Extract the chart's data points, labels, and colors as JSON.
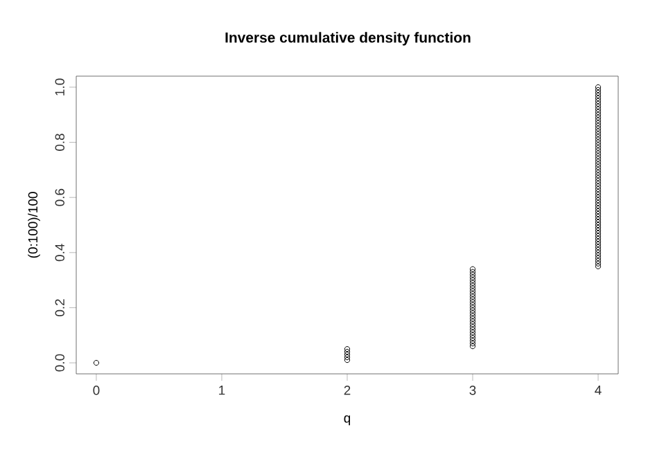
{
  "chart_data": {
    "type": "scatter",
    "title": "Inverse cumulative density function",
    "xlabel": "q",
    "ylabel": "(0:100)/100",
    "x": [
      0,
      2,
      2,
      2,
      2,
      2,
      3,
      3,
      3,
      3,
      3,
      3,
      3,
      3,
      3,
      3,
      3,
      3,
      3,
      3,
      3,
      3,
      3,
      3,
      3,
      3,
      3,
      3,
      3,
      3,
      3,
      3,
      3,
      3,
      3,
      4,
      4,
      4,
      4,
      4,
      4,
      4,
      4,
      4,
      4,
      4,
      4,
      4,
      4,
      4,
      4,
      4,
      4,
      4,
      4,
      4,
      4,
      4,
      4,
      4,
      4,
      4,
      4,
      4,
      4,
      4,
      4,
      4,
      4,
      4,
      4,
      4,
      4,
      4,
      4,
      4,
      4,
      4,
      4,
      4,
      4,
      4,
      4,
      4,
      4,
      4,
      4,
      4,
      4,
      4,
      4,
      4,
      4,
      4,
      4,
      4,
      4,
      4,
      4,
      4,
      4
    ],
    "values": [
      0,
      0.01,
      0.02,
      0.03,
      0.04,
      0.05,
      0.06,
      0.07,
      0.08,
      0.09,
      0.1,
      0.11,
      0.12,
      0.13,
      0.14,
      0.15,
      0.16,
      0.17,
      0.18,
      0.19,
      0.2,
      0.21,
      0.22,
      0.23,
      0.24,
      0.25,
      0.26,
      0.27,
      0.28,
      0.29,
      0.3,
      0.31,
      0.32,
      0.33,
      0.34,
      0.35,
      0.36,
      0.37,
      0.38,
      0.39,
      0.4,
      0.41,
      0.42,
      0.43,
      0.44,
      0.45,
      0.46,
      0.47,
      0.48,
      0.49,
      0.5,
      0.51,
      0.52,
      0.53,
      0.54,
      0.55,
      0.56,
      0.57,
      0.58,
      0.59,
      0.6,
      0.61,
      0.62,
      0.63,
      0.64,
      0.65,
      0.66,
      0.67,
      0.68,
      0.69,
      0.7,
      0.71,
      0.72,
      0.73,
      0.74,
      0.75,
      0.76,
      0.77,
      0.78,
      0.79,
      0.8,
      0.81,
      0.82,
      0.83,
      0.84,
      0.85,
      0.86,
      0.87,
      0.88,
      0.89,
      0.9,
      0.91,
      0.92,
      0.93,
      0.94,
      0.95,
      0.96,
      0.97,
      0.98,
      0.99,
      1
    ],
    "color": "#000000",
    "marker": "circle",
    "xlim": [
      -0.16,
      4.16
    ],
    "ylim": [
      -0.04,
      1.04
    ],
    "xticks": [
      0,
      1,
      2,
      3,
      4
    ],
    "yticks": [
      {
        "value": 0,
        "label": "0.0"
      },
      0.2,
      0.4,
      0.6,
      0.8,
      {
        "value": 1,
        "label": "1.0"
      }
    ]
  }
}
